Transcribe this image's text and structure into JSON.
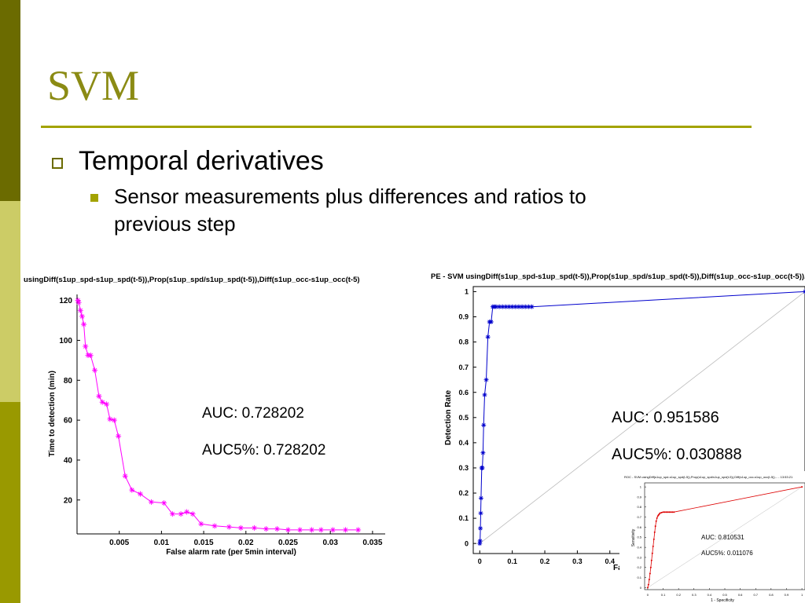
{
  "slide": {
    "title": "SVM",
    "bullet1": "Temporal derivatives",
    "bullet2": "Sensor measurements plus differences and ratios to previous step"
  },
  "colors": {
    "accent": "#a3a300",
    "stripe_dark": "#6b6b00",
    "stripe_light": "#cccc66",
    "stripe_mid": "#999900",
    "title": "#8b8b14"
  },
  "chart_data": [
    {
      "type": "line",
      "title": "usingDiff(s1up_spd-s1up_spd(t-5)),Prop(s1up_spd/s1up_spd(t-5)),Diff(s1up_occ-s1up_occ(t-5)",
      "xlabel": "False alarm rate (per 5min interval)",
      "ylabel": "Time to detection (min)",
      "xlim": [
        0,
        0.0365
      ],
      "ylim": [
        3,
        123
      ],
      "xticks": [
        0.005,
        0.01,
        0.015,
        0.02,
        0.025,
        0.03,
        0.035
      ],
      "xtick_labels": [
        "0.005",
        "0.01",
        "0.015",
        "0.02",
        "0.025",
        "0.03",
        "0.035"
      ],
      "yticks": [
        20,
        40,
        60,
        80,
        100,
        120
      ],
      "ytick_labels": [
        "20",
        "40",
        "60",
        "80",
        "100",
        "120"
      ],
      "color": "#ff00ff",
      "marker": "asterisk",
      "x": [
        0.0001,
        0.0002,
        0.0004,
        0.0006,
        0.0008,
        0.001,
        0.0013,
        0.0016,
        0.0021,
        0.0026,
        0.003,
        0.0035,
        0.0039,
        0.0044,
        0.0049,
        0.0057,
        0.0065,
        0.0075,
        0.0088,
        0.0103,
        0.0113,
        0.0123,
        0.013,
        0.0137,
        0.0147,
        0.0163,
        0.018,
        0.0194,
        0.021,
        0.0224,
        0.0237,
        0.025,
        0.0264,
        0.0278,
        0.0289,
        0.0303,
        0.0318,
        0.0333
      ],
      "y": [
        120,
        119,
        115,
        112,
        108,
        97,
        92.5,
        92.5,
        85,
        72,
        69,
        68,
        60.5,
        60,
        52,
        32,
        25,
        23,
        19,
        18.5,
        13,
        13,
        14,
        13,
        8,
        7,
        6.5,
        6,
        6,
        5.5,
        5.5,
        5,
        5,
        5,
        5,
        5,
        5,
        5
      ],
      "annotations": [
        "AUC: 0.728202",
        "AUC5%: 0.728202"
      ]
    },
    {
      "type": "line",
      "title": "PE - SVM usingDiff(s1up_spd-s1up_spd(t-5)),Prop(s1up_spd/s1up_spd(t-5)),Diff(s1up_occ-s1up_occ(t-5))...",
      "xlabel": "Fals",
      "ylabel": "Detection Rate",
      "xlim": [
        -0.02,
        1.0
      ],
      "ylim": [
        -0.04,
        1.02
      ],
      "xticks": [
        0,
        0.1,
        0.2,
        0.3,
        0.4
      ],
      "xtick_labels": [
        "0",
        "0.1",
        "0.2",
        "0.3",
        "0.4"
      ],
      "yticks": [
        0,
        0.1,
        0.2,
        0.3,
        0.4,
        0.5,
        0.6,
        0.7,
        0.8,
        0.9,
        1
      ],
      "ytick_labels": [
        "0",
        "0.1",
        "0.2",
        "0.3",
        "0.4",
        "0.5",
        "0.6",
        "0.7",
        "0.8",
        "0.9",
        "1"
      ],
      "color": "#0000cc",
      "marker": "asterisk",
      "x": [
        0,
        0.001,
        0.002,
        0.003,
        0.004,
        0.006,
        0.008,
        0.01,
        0.012,
        0.015,
        0.02,
        0.025,
        0.03,
        0.035,
        0.04,
        0.045,
        0.05,
        0.06,
        0.07,
        0.08,
        0.09,
        0.1,
        0.11,
        0.12,
        0.13,
        0.14,
        0.15,
        0.16,
        1.0
      ],
      "y": [
        0,
        0.01,
        0.06,
        0.12,
        0.18,
        0.3,
        0.3,
        0.36,
        0.47,
        0.59,
        0.65,
        0.82,
        0.88,
        0.88,
        0.94,
        0.94,
        0.94,
        0.94,
        0.94,
        0.94,
        0.94,
        0.94,
        0.94,
        0.94,
        0.94,
        0.94,
        0.94,
        0.94,
        1.0
      ],
      "diagonal": true,
      "annotations": [
        "AUC: 0.951586",
        "AUC5%: 0.030888"
      ]
    },
    {
      "type": "line",
      "title": "ROC - SVM usingDiff(s1up_spd-s1up_spd(t-5)),Prop(s1up_spd/s1up_spd(t-5)),Diff(s1up_occ-s1up_occ(t-5))... - 13:53:21",
      "xlabel": "1 - Specificity",
      "ylabel": "Sensitivity",
      "xlim": [
        -0.02,
        1.02
      ],
      "ylim": [
        -0.02,
        1.04
      ],
      "xticks": [
        0,
        0.1,
        0.2,
        0.3,
        0.4,
        0.5,
        0.6,
        0.7,
        0.8,
        0.9,
        1
      ],
      "xtick_labels": [
        "0",
        "0.1",
        "0.2",
        "0.3",
        "0.4",
        "0.5",
        "0.6",
        "0.7",
        "0.8",
        "0.9",
        "1"
      ],
      "yticks": [
        0,
        0.1,
        0.2,
        0.3,
        0.4,
        0.5,
        0.6,
        0.7,
        0.8,
        0.9,
        1
      ],
      "ytick_labels": [
        "0",
        "0.1",
        "0.2",
        "0.3",
        "0.4",
        "0.5",
        "0.6",
        "0.7",
        "0.8",
        "0.9",
        "1"
      ],
      "color": "#dd0000",
      "marker": "dot",
      "x": [
        0,
        0.005,
        0.01,
        0.015,
        0.02,
        0.025,
        0.03,
        0.035,
        0.04,
        0.045,
        0.05,
        0.055,
        0.06,
        0.065,
        0.07,
        0.075,
        0.08,
        0.09,
        0.1,
        0.11,
        0.12,
        0.13,
        0.14,
        0.15,
        0.16,
        0.17,
        1.0
      ],
      "y": [
        0,
        0.03,
        0.08,
        0.14,
        0.2,
        0.27,
        0.34,
        0.41,
        0.48,
        0.55,
        0.61,
        0.66,
        0.69,
        0.71,
        0.72,
        0.73,
        0.74,
        0.745,
        0.75,
        0.75,
        0.75,
        0.75,
        0.75,
        0.75,
        0.75,
        0.75,
        1.0
      ],
      "diagonal": true,
      "annotations": [
        "AUC: 0.810531",
        "AUC5%: 0.011076"
      ]
    }
  ]
}
